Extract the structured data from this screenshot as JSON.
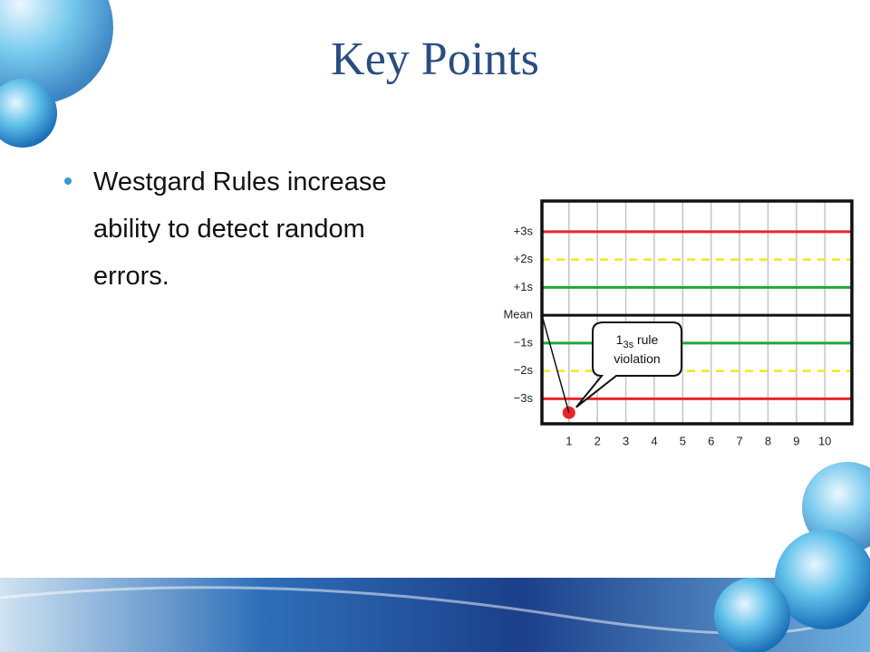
{
  "slide": {
    "title": "Key Points",
    "bullet_lines": [
      "Westgard Rules increase",
      "ability to detect random",
      "errors."
    ]
  },
  "chart_data": {
    "type": "scatter",
    "x": [
      1
    ],
    "series": [
      {
        "color": "#e8262a",
        "values": [
          -3.5
        ]
      }
    ],
    "xlim": [
      0.05,
      10.95
    ],
    "xticks": [
      1,
      2,
      3,
      4,
      5,
      6,
      7,
      8,
      9,
      10
    ],
    "ylim": [
      -3.9,
      4.1
    ],
    "yticks": [
      {
        "value": 3,
        "label": "+3s"
      },
      {
        "value": 2,
        "label": "+2s"
      },
      {
        "value": 1,
        "label": "+1s"
      },
      {
        "value": 0,
        "label": "Mean"
      },
      {
        "value": -1,
        "label": "−1s"
      },
      {
        "value": -2,
        "label": "−2s"
      },
      {
        "value": -3,
        "label": "−3s"
      }
    ],
    "line_colors": [
      "#e8262a",
      "#f5e61a",
      "#1fa83a",
      "#111111",
      "#1fa83a",
      "#f5e61a",
      "#e8262a"
    ],
    "line_dashed": [
      false,
      true,
      false,
      false,
      false,
      true,
      false
    ],
    "grid": true,
    "annotation": {
      "main": "1",
      "sub": "3s",
      "rest": " rule",
      "line2": "violation"
    }
  }
}
